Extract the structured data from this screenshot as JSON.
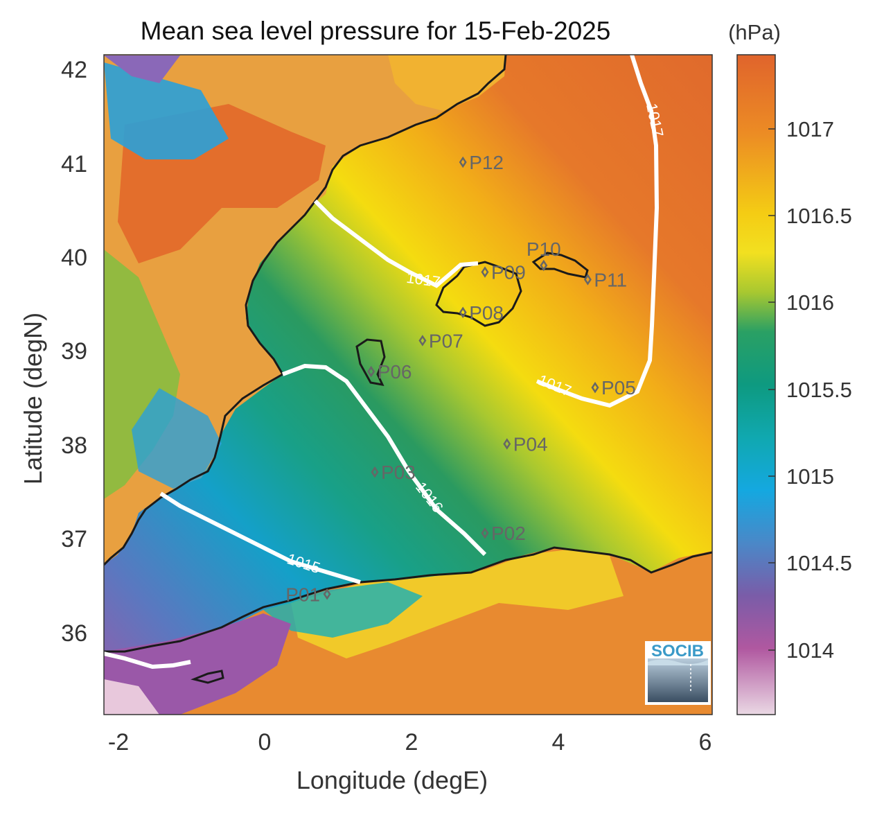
{
  "title": "Mean sea level pressure for 15-Feb-2025",
  "xlabel": "Longitude (degE)",
  "ylabel": "Latitude (degN)",
  "xticks": [
    "-2",
    "0",
    "2",
    "4",
    "6"
  ],
  "yticks": [
    "42",
    "41",
    "40",
    "39",
    "38",
    "37",
    "36"
  ],
  "colorbar": {
    "unit": "(hPa)",
    "ticks": [
      "1017",
      "1016.5",
      "1016",
      "1015.5",
      "1015",
      "1014.5",
      "1014"
    ]
  },
  "isobars": [
    {
      "label": "1017",
      "value": 1017
    },
    {
      "label": "1016",
      "value": 1016
    },
    {
      "label": "1015",
      "value": 1015
    }
  ],
  "points": [
    {
      "label": "P01",
      "lon": 0.85,
      "lat": 36.5
    },
    {
      "label": "P02",
      "lon": 3.0,
      "lat": 37.15
    },
    {
      "label": "P03",
      "lon": 1.5,
      "lat": 37.8
    },
    {
      "label": "P04",
      "lon": 3.3,
      "lat": 38.1
    },
    {
      "label": "P05",
      "lon": 4.5,
      "lat": 38.7
    },
    {
      "label": "P06",
      "lon": 1.45,
      "lat": 38.87
    },
    {
      "label": "P07",
      "lon": 2.15,
      "lat": 39.2
    },
    {
      "label": "P08",
      "lon": 2.7,
      "lat": 39.5
    },
    {
      "label": "P09",
      "lon": 3.0,
      "lat": 39.93
    },
    {
      "label": "P10",
      "lon": 3.8,
      "lat": 40.0
    },
    {
      "label": "P11",
      "lon": 4.4,
      "lat": 39.85
    },
    {
      "label": "P12",
      "lon": 2.7,
      "lat": 41.1
    }
  ],
  "logo_text": "SOCIB",
  "colors": {
    "high": "#e36e2c",
    "mid_high": "#f0a31c",
    "yellow": "#f4dc10",
    "green": "#1a9a6a",
    "teal": "#10a8a8",
    "blue": "#19a8dc",
    "purple": "#8a58a8",
    "pink": "#e8c8dc",
    "coast": "#1a1a1a",
    "isobar": "#ffffff"
  },
  "chart_data": {
    "type": "heatmap",
    "title": "Mean sea level pressure for 15-Feb-2025",
    "xlabel": "Longitude (degE)",
    "ylabel": "Latitude (degN)",
    "xlim": [
      -2.25,
      6.05
    ],
    "ylim": [
      35.15,
      42.2
    ],
    "colorbar_range": [
      1013.6,
      1017.4
    ],
    "contour_levels": [
      1015,
      1016,
      1017
    ]
  }
}
